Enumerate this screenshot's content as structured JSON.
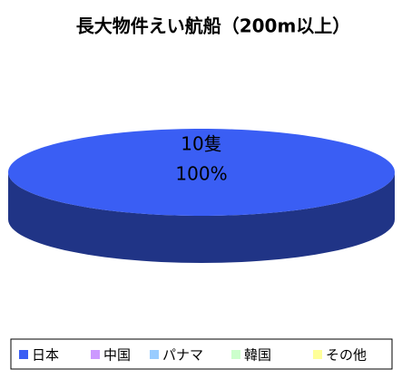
{
  "chart_data": {
    "type": "pie",
    "title": "長大物件えい航船（200m以上）",
    "categories": [
      "日本",
      "中国",
      "パナマ",
      "韓国",
      "その他"
    ],
    "values": [
      10,
      0,
      0,
      0,
      0
    ],
    "value_labels": [
      "10隻",
      null,
      null,
      null,
      null
    ],
    "percents": [
      100,
      0,
      0,
      0,
      0
    ],
    "percent_labels": [
      "100%",
      null,
      null,
      null,
      null
    ],
    "colors": [
      "#3a5ef4",
      "#cc99ff",
      "#99ccff",
      "#ccffcc",
      "#ffff99"
    ],
    "legend": "bottom"
  }
}
